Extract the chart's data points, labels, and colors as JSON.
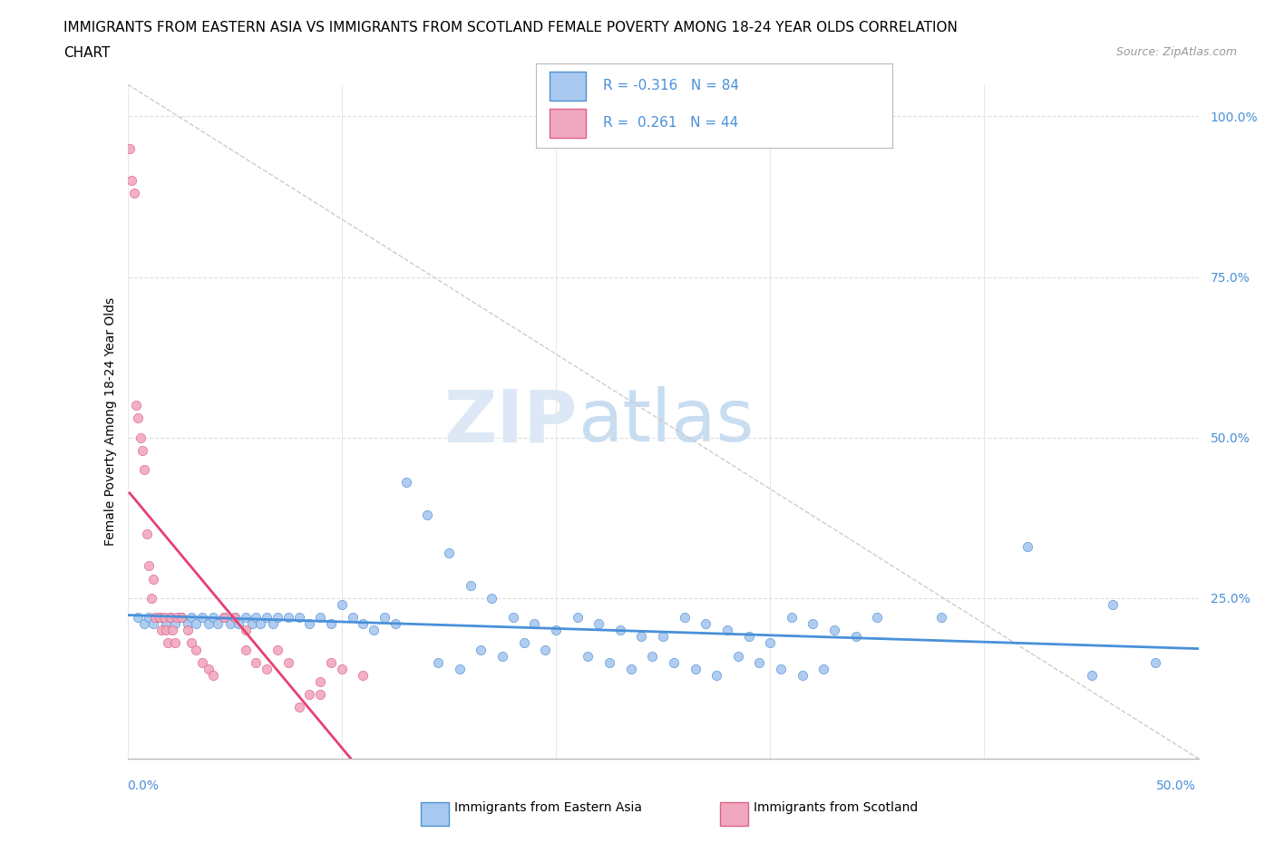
{
  "title_line1": "IMMIGRANTS FROM EASTERN ASIA VS IMMIGRANTS FROM SCOTLAND FEMALE POVERTY AMONG 18-24 YEAR OLDS CORRELATION",
  "title_line2": "CHART",
  "source_text": "Source: ZipAtlas.com",
  "ylabel": "Female Poverty Among 18-24 Year Olds",
  "y_ticks": [
    0.0,
    0.25,
    0.5,
    0.75,
    1.0
  ],
  "y_tick_labels": [
    "",
    "25.0%",
    "50.0%",
    "75.0%",
    "100.0%"
  ],
  "xlim": [
    0.0,
    0.5
  ],
  "ylim": [
    0.0,
    1.05
  ],
  "watermark_zip": "ZIP",
  "watermark_atlas": "atlas",
  "blue_color": "#a8c8f0",
  "pink_color": "#f0a8c0",
  "blue_edge_color": "#5090d0",
  "pink_edge_color": "#e06080",
  "blue_line_color": "#4a90d9",
  "pink_line_color": "#e84070",
  "blue_R": -0.316,
  "blue_N": 84,
  "pink_R": 0.261,
  "pink_N": 44,
  "blue_scatter_x": [
    0.005,
    0.008,
    0.01,
    0.012,
    0.015,
    0.018,
    0.02,
    0.022,
    0.025,
    0.028,
    0.03,
    0.032,
    0.035,
    0.038,
    0.04,
    0.042,
    0.045,
    0.048,
    0.05,
    0.052,
    0.055,
    0.058,
    0.06,
    0.062,
    0.065,
    0.068,
    0.07,
    0.075,
    0.08,
    0.085,
    0.09,
    0.095,
    0.1,
    0.105,
    0.11,
    0.115,
    0.12,
    0.125,
    0.13,
    0.14,
    0.15,
    0.16,
    0.17,
    0.18,
    0.19,
    0.2,
    0.21,
    0.22,
    0.23,
    0.24,
    0.25,
    0.26,
    0.27,
    0.28,
    0.29,
    0.3,
    0.31,
    0.32,
    0.33,
    0.34,
    0.35,
    0.38,
    0.42,
    0.45,
    0.175,
    0.145,
    0.165,
    0.155,
    0.185,
    0.195,
    0.215,
    0.225,
    0.235,
    0.245,
    0.255,
    0.265,
    0.275,
    0.285,
    0.295,
    0.305,
    0.315,
    0.325,
    0.46,
    0.48
  ],
  "blue_scatter_y": [
    0.22,
    0.21,
    0.22,
    0.21,
    0.22,
    0.21,
    0.22,
    0.21,
    0.22,
    0.21,
    0.22,
    0.21,
    0.22,
    0.21,
    0.22,
    0.21,
    0.22,
    0.21,
    0.22,
    0.21,
    0.22,
    0.21,
    0.22,
    0.21,
    0.22,
    0.21,
    0.22,
    0.22,
    0.22,
    0.21,
    0.22,
    0.21,
    0.24,
    0.22,
    0.21,
    0.2,
    0.22,
    0.21,
    0.43,
    0.38,
    0.32,
    0.27,
    0.25,
    0.22,
    0.21,
    0.2,
    0.22,
    0.21,
    0.2,
    0.19,
    0.19,
    0.22,
    0.21,
    0.2,
    0.19,
    0.18,
    0.22,
    0.21,
    0.2,
    0.19,
    0.22,
    0.22,
    0.33,
    0.13,
    0.16,
    0.15,
    0.17,
    0.14,
    0.18,
    0.17,
    0.16,
    0.15,
    0.14,
    0.16,
    0.15,
    0.14,
    0.13,
    0.16,
    0.15,
    0.14,
    0.13,
    0.14,
    0.24,
    0.15
  ],
  "pink_scatter_x": [
    0.001,
    0.002,
    0.003,
    0.004,
    0.005,
    0.006,
    0.007,
    0.008,
    0.009,
    0.01,
    0.011,
    0.012,
    0.013,
    0.015,
    0.016,
    0.017,
    0.018,
    0.019,
    0.02,
    0.021,
    0.022,
    0.023,
    0.025,
    0.028,
    0.03,
    0.032,
    0.035,
    0.038,
    0.04,
    0.045,
    0.05,
    0.055,
    0.06,
    0.065,
    0.07,
    0.075,
    0.08,
    0.085,
    0.09,
    0.095,
    0.1,
    0.11,
    0.055,
    0.09
  ],
  "pink_scatter_y": [
    0.95,
    0.9,
    0.88,
    0.55,
    0.53,
    0.5,
    0.48,
    0.45,
    0.35,
    0.3,
    0.25,
    0.28,
    0.22,
    0.22,
    0.2,
    0.22,
    0.2,
    0.18,
    0.22,
    0.2,
    0.18,
    0.22,
    0.22,
    0.2,
    0.18,
    0.17,
    0.15,
    0.14,
    0.13,
    0.22,
    0.22,
    0.2,
    0.15,
    0.14,
    0.17,
    0.15,
    0.08,
    0.1,
    0.12,
    0.15,
    0.14,
    0.13,
    0.17,
    0.1
  ]
}
